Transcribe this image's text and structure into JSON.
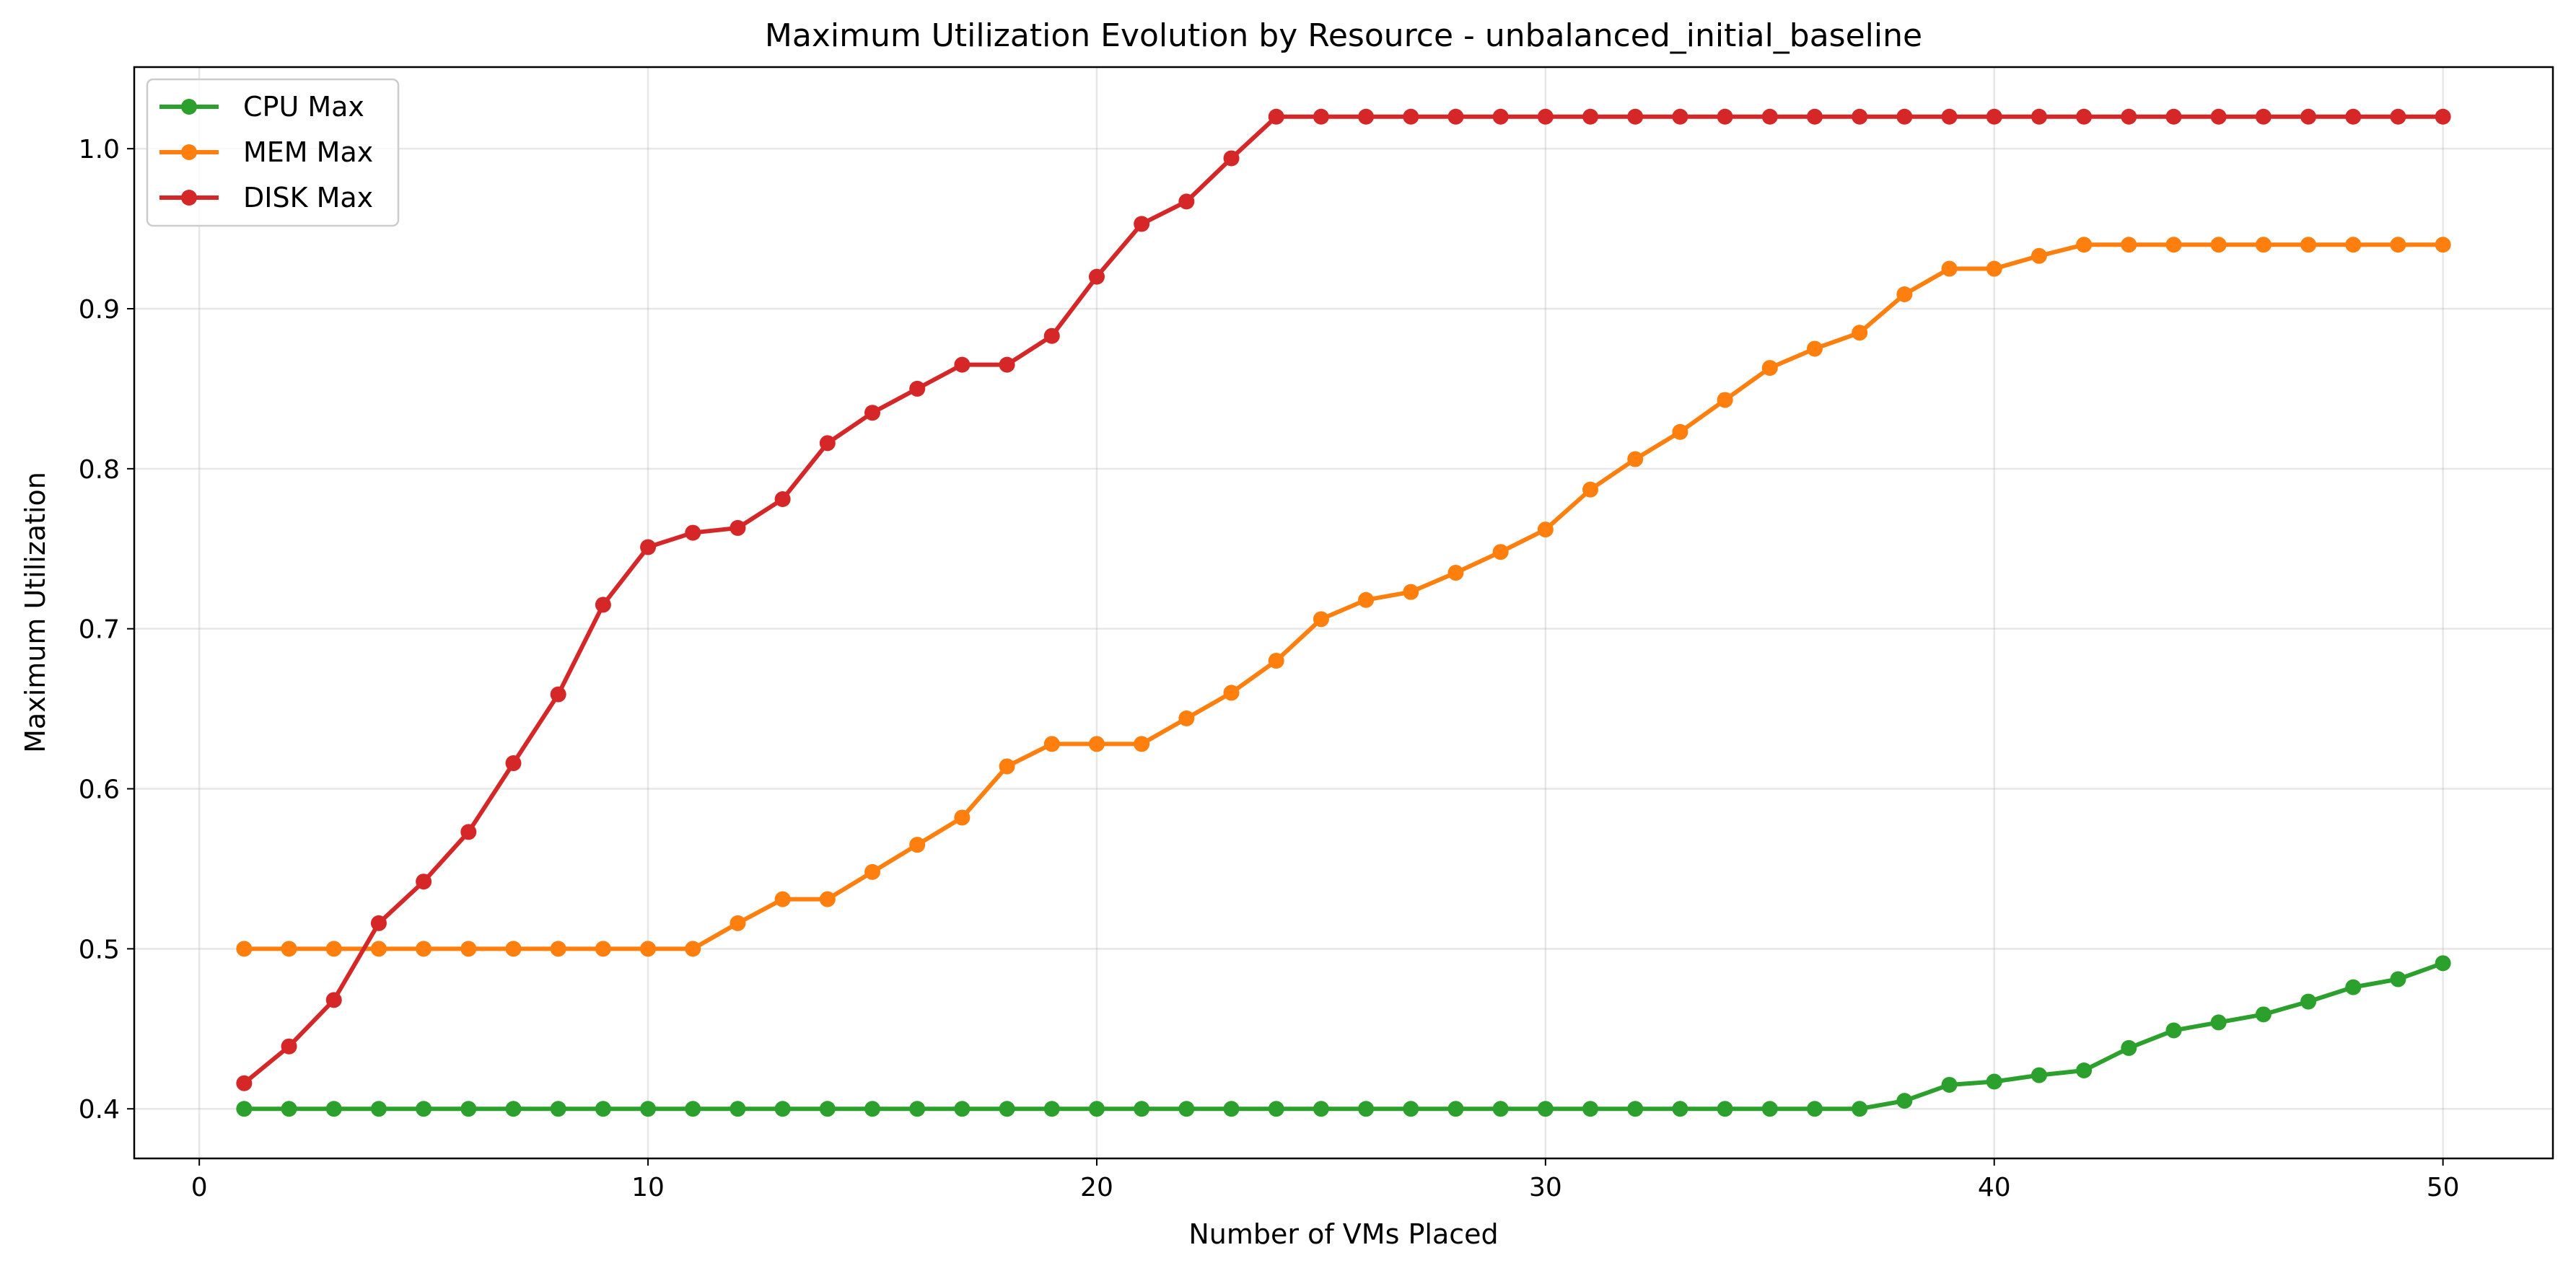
{
  "chart_data": {
    "type": "line",
    "title": "Maximum Utilization Evolution by Resource - unbalanced_initial_baseline",
    "xlabel": "Number of VMs Placed",
    "ylabel": "Maximum Utilization",
    "xlim": [
      -1.45,
      52.45
    ],
    "ylim": [
      0.369,
      1.051
    ],
    "xticks": [
      0,
      10,
      20,
      30,
      40,
      50
    ],
    "yticks": [
      0.4,
      0.5,
      0.6,
      0.7,
      0.8,
      0.9,
      1.0
    ],
    "xtick_labels": [
      "0",
      "10",
      "20",
      "30",
      "40",
      "50"
    ],
    "ytick_labels": [
      "0.4",
      "0.5",
      "0.6",
      "0.7",
      "0.8",
      "0.9",
      "1.0"
    ],
    "grid": true,
    "legend_position": "top-left",
    "x": [
      1,
      2,
      3,
      4,
      5,
      6,
      7,
      8,
      9,
      10,
      11,
      12,
      13,
      14,
      15,
      16,
      17,
      18,
      19,
      20,
      21,
      22,
      23,
      24,
      25,
      26,
      27,
      28,
      29,
      30,
      31,
      32,
      33,
      34,
      35,
      36,
      37,
      38,
      39,
      40,
      41,
      42,
      43,
      44,
      45,
      46,
      47,
      48,
      49,
      50
    ],
    "series": [
      {
        "name": "CPU Max",
        "color": "#2ca02c",
        "values": [
          0.4,
          0.4,
          0.4,
          0.4,
          0.4,
          0.4,
          0.4,
          0.4,
          0.4,
          0.4,
          0.4,
          0.4,
          0.4,
          0.4,
          0.4,
          0.4,
          0.4,
          0.4,
          0.4,
          0.4,
          0.4,
          0.4,
          0.4,
          0.4,
          0.4,
          0.4,
          0.4,
          0.4,
          0.4,
          0.4,
          0.4,
          0.4,
          0.4,
          0.4,
          0.4,
          0.4,
          0.4,
          0.405,
          0.415,
          0.417,
          0.421,
          0.424,
          0.438,
          0.449,
          0.454,
          0.459,
          0.467,
          0.476,
          0.481,
          0.491
        ]
      },
      {
        "name": "MEM Max",
        "color": "#ff7f0e",
        "values": [
          0.5,
          0.5,
          0.5,
          0.5,
          0.5,
          0.5,
          0.5,
          0.5,
          0.5,
          0.5,
          0.5,
          0.516,
          0.531,
          0.531,
          0.548,
          0.565,
          0.582,
          0.614,
          0.628,
          0.628,
          0.628,
          0.644,
          0.66,
          0.68,
          0.706,
          0.718,
          0.723,
          0.735,
          0.748,
          0.762,
          0.787,
          0.806,
          0.823,
          0.843,
          0.863,
          0.875,
          0.885,
          0.909,
          0.925,
          0.925,
          0.933,
          0.94,
          0.94,
          0.94,
          0.94,
          0.94,
          0.94,
          0.94,
          0.94,
          0.94
        ]
      },
      {
        "name": "DISK Max",
        "color": "#d62728",
        "values": [
          0.416,
          0.439,
          0.468,
          0.516,
          0.542,
          0.573,
          0.616,
          0.659,
          0.715,
          0.751,
          0.76,
          0.763,
          0.781,
          0.816,
          0.835,
          0.85,
          0.865,
          0.865,
          0.883,
          0.92,
          0.953,
          0.967,
          0.994,
          1.02,
          1.02,
          1.02,
          1.02,
          1.02,
          1.02,
          1.02,
          1.02,
          1.02,
          1.02,
          1.02,
          1.02,
          1.02,
          1.02,
          1.02,
          1.02,
          1.02,
          1.02,
          1.02,
          1.02,
          1.02,
          1.02,
          1.02,
          1.02,
          1.02,
          1.02,
          1.02
        ]
      }
    ]
  }
}
